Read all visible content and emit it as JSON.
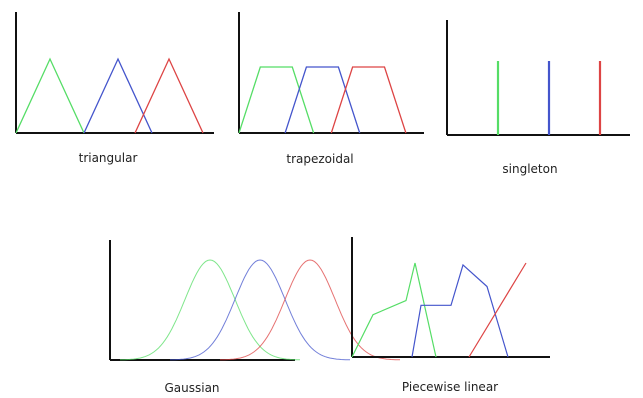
{
  "colors": {
    "axis": "#111111",
    "green": "#55dd66",
    "blue": "#4455cc",
    "red": "#dd4444"
  },
  "panels": [
    {
      "id": "triangular",
      "label": "triangular",
      "shapes": [
        {
          "color": "green",
          "points": [
            [
              0.0,
              0.0
            ],
            [
              0.5,
              1.0
            ],
            [
              1.0,
              0.0
            ]
          ]
        },
        {
          "color": "blue",
          "points": [
            [
              1.0,
              0.0
            ],
            [
              1.5,
              1.0
            ],
            [
              2.0,
              0.0
            ]
          ]
        },
        {
          "color": "red",
          "points": [
            [
              1.75,
              0.0
            ],
            [
              2.25,
              1.0
            ],
            [
              2.75,
              0.0
            ]
          ]
        }
      ]
    },
    {
      "id": "trapezoidal",
      "label": "trapezoidal",
      "shapes": [
        {
          "color": "green",
          "points": [
            [
              0.0,
              0.0
            ],
            [
              0.3,
              1.0
            ],
            [
              0.75,
              1.0
            ],
            [
              1.05,
              0.0
            ]
          ]
        },
        {
          "color": "blue",
          "points": [
            [
              0.65,
              0.0
            ],
            [
              0.95,
              1.0
            ],
            [
              1.4,
              1.0
            ],
            [
              1.7,
              0.0
            ]
          ]
        },
        {
          "color": "red",
          "points": [
            [
              1.3,
              0.0
            ],
            [
              1.6,
              1.0
            ],
            [
              2.05,
              1.0
            ],
            [
              2.35,
              0.0
            ]
          ]
        }
      ]
    },
    {
      "id": "singleton",
      "label": "singleton",
      "shapes": [
        {
          "color": "green",
          "points": [
            [
              1.0,
              0.0
            ],
            [
              1.0,
              1.0
            ]
          ]
        },
        {
          "color": "blue",
          "points": [
            [
              2.0,
              0.0
            ],
            [
              2.0,
              1.0
            ]
          ]
        },
        {
          "color": "red",
          "points": [
            [
              3.0,
              0.0
            ],
            [
              3.0,
              1.0
            ]
          ]
        }
      ]
    },
    {
      "id": "gaussian",
      "label": "Gaussian",
      "gaussians": [
        {
          "color": "green",
          "mean": 1.0,
          "sigma": 0.25
        },
        {
          "color": "blue",
          "mean": 1.5,
          "sigma": 0.25
        },
        {
          "color": "red",
          "mean": 2.0,
          "sigma": 0.25
        }
      ]
    },
    {
      "id": "piecewise-linear",
      "label": "Piecewise linear",
      "shapes": [
        {
          "color": "green",
          "points": [
            [
              0.0,
              0.0
            ],
            [
              0.35,
              0.45
            ],
            [
              0.9,
              0.6
            ],
            [
              1.05,
              1.0
            ],
            [
              1.4,
              0.0
            ]
          ]
        },
        {
          "color": "blue",
          "points": [
            [
              1.0,
              0.0
            ],
            [
              1.15,
              0.55
            ],
            [
              1.65,
              0.55
            ],
            [
              1.85,
              0.98
            ],
            [
              2.25,
              0.75
            ],
            [
              2.6,
              0.0
            ]
          ]
        },
        {
          "color": "red",
          "points": [
            [
              1.95,
              0.0
            ],
            [
              2.9,
              1.0
            ]
          ]
        }
      ]
    }
  ]
}
